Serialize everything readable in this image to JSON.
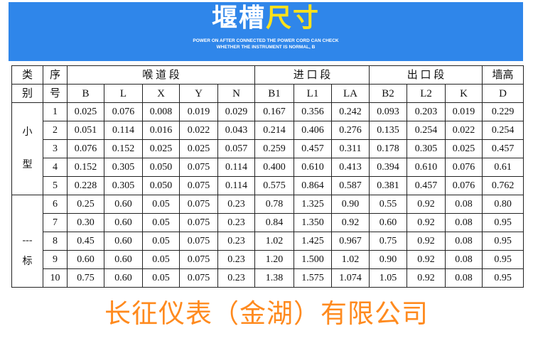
{
  "banner": {
    "title_white": "堰槽",
    "title_yellow": "尺寸",
    "subtitle_line1": "POWER ON AFTER CONNECTED THE POWER CORD CAN CHECK",
    "subtitle_line2": "WHETHER THE INSTRUMENT IS NORMAL, B",
    "accent": "#2f86ea"
  },
  "table": {
    "h_cat1": "类",
    "h_cat2": "别",
    "h_seq1": "序",
    "h_seq2": "号",
    "g_throat": "喉 道 段",
    "g_inlet": "进 口 段",
    "g_outlet": "出 口 段",
    "g_wall": "墙高",
    "cols": [
      "B",
      "L",
      "X",
      "Y",
      "N",
      "B1",
      "L1",
      "LA",
      "B2",
      "L2",
      "K",
      "D"
    ],
    "cat_small": [
      "小",
      "型"
    ],
    "cat_std": [
      "---",
      "标"
    ],
    "rows": [
      [
        "1",
        "0.025",
        "0.076",
        "0.008",
        "0.019",
        "0.029",
        "0.167",
        "0.356",
        "0.242",
        "0.093",
        "0.203",
        "0.019",
        "0.229"
      ],
      [
        "2",
        "0.051",
        "0.114",
        "0.016",
        "0.022",
        "0.043",
        "0.214",
        "0.406",
        "0.276",
        "0.135",
        "0.254",
        "0.022",
        "0.254"
      ],
      [
        "3",
        "0.076",
        "0.152",
        "0.025",
        "0.025",
        "0.057",
        "0.259",
        "0.457",
        "0.311",
        "0.178",
        "0.305",
        "0.025",
        "0.457"
      ],
      [
        "4",
        "0.152",
        "0.305",
        "0.050",
        "0.075",
        "0.114",
        "0.400",
        "0.610",
        "0.413",
        "0.394",
        "0.610",
        "0.076",
        "0.61"
      ],
      [
        "5",
        "0.228",
        "0.305",
        "0.050",
        "0.075",
        "0.114",
        "0.575",
        "0.864",
        "0.587",
        "0.381",
        "0.457",
        "0.076",
        "0.762"
      ],
      [
        "6",
        "0.25",
        "0.60",
        "0.05",
        "0.075",
        "0.23",
        "0.78",
        "1.325",
        "0.90",
        "0.55",
        "0.92",
        "0.08",
        "0.80"
      ],
      [
        "7",
        "0.30",
        "0.60",
        "0.05",
        "0.075",
        "0.23",
        "0.84",
        "1.350",
        "0.92",
        "0.60",
        "0.92",
        "0.08",
        "0.95"
      ],
      [
        "8",
        "0.45",
        "0.60",
        "0.05",
        "0.075",
        "0.23",
        "1.02",
        "1.425",
        "0.967",
        "0.75",
        "0.92",
        "0.08",
        "0.95"
      ],
      [
        "9",
        "0.60",
        "0.60",
        "0.05",
        "0.075",
        "0.23",
        "1.20",
        "1.500",
        "1.02",
        "0.90",
        "0.92",
        "0.08",
        "0.95"
      ],
      [
        "10",
        "0.75",
        "0.60",
        "0.05",
        "0.075",
        "0.23",
        "1.38",
        "1.575",
        "1.074",
        "1.05",
        "0.92",
        "0.08",
        "0.95"
      ]
    ]
  },
  "watermark": "长征仪表（金湖）有限公司"
}
